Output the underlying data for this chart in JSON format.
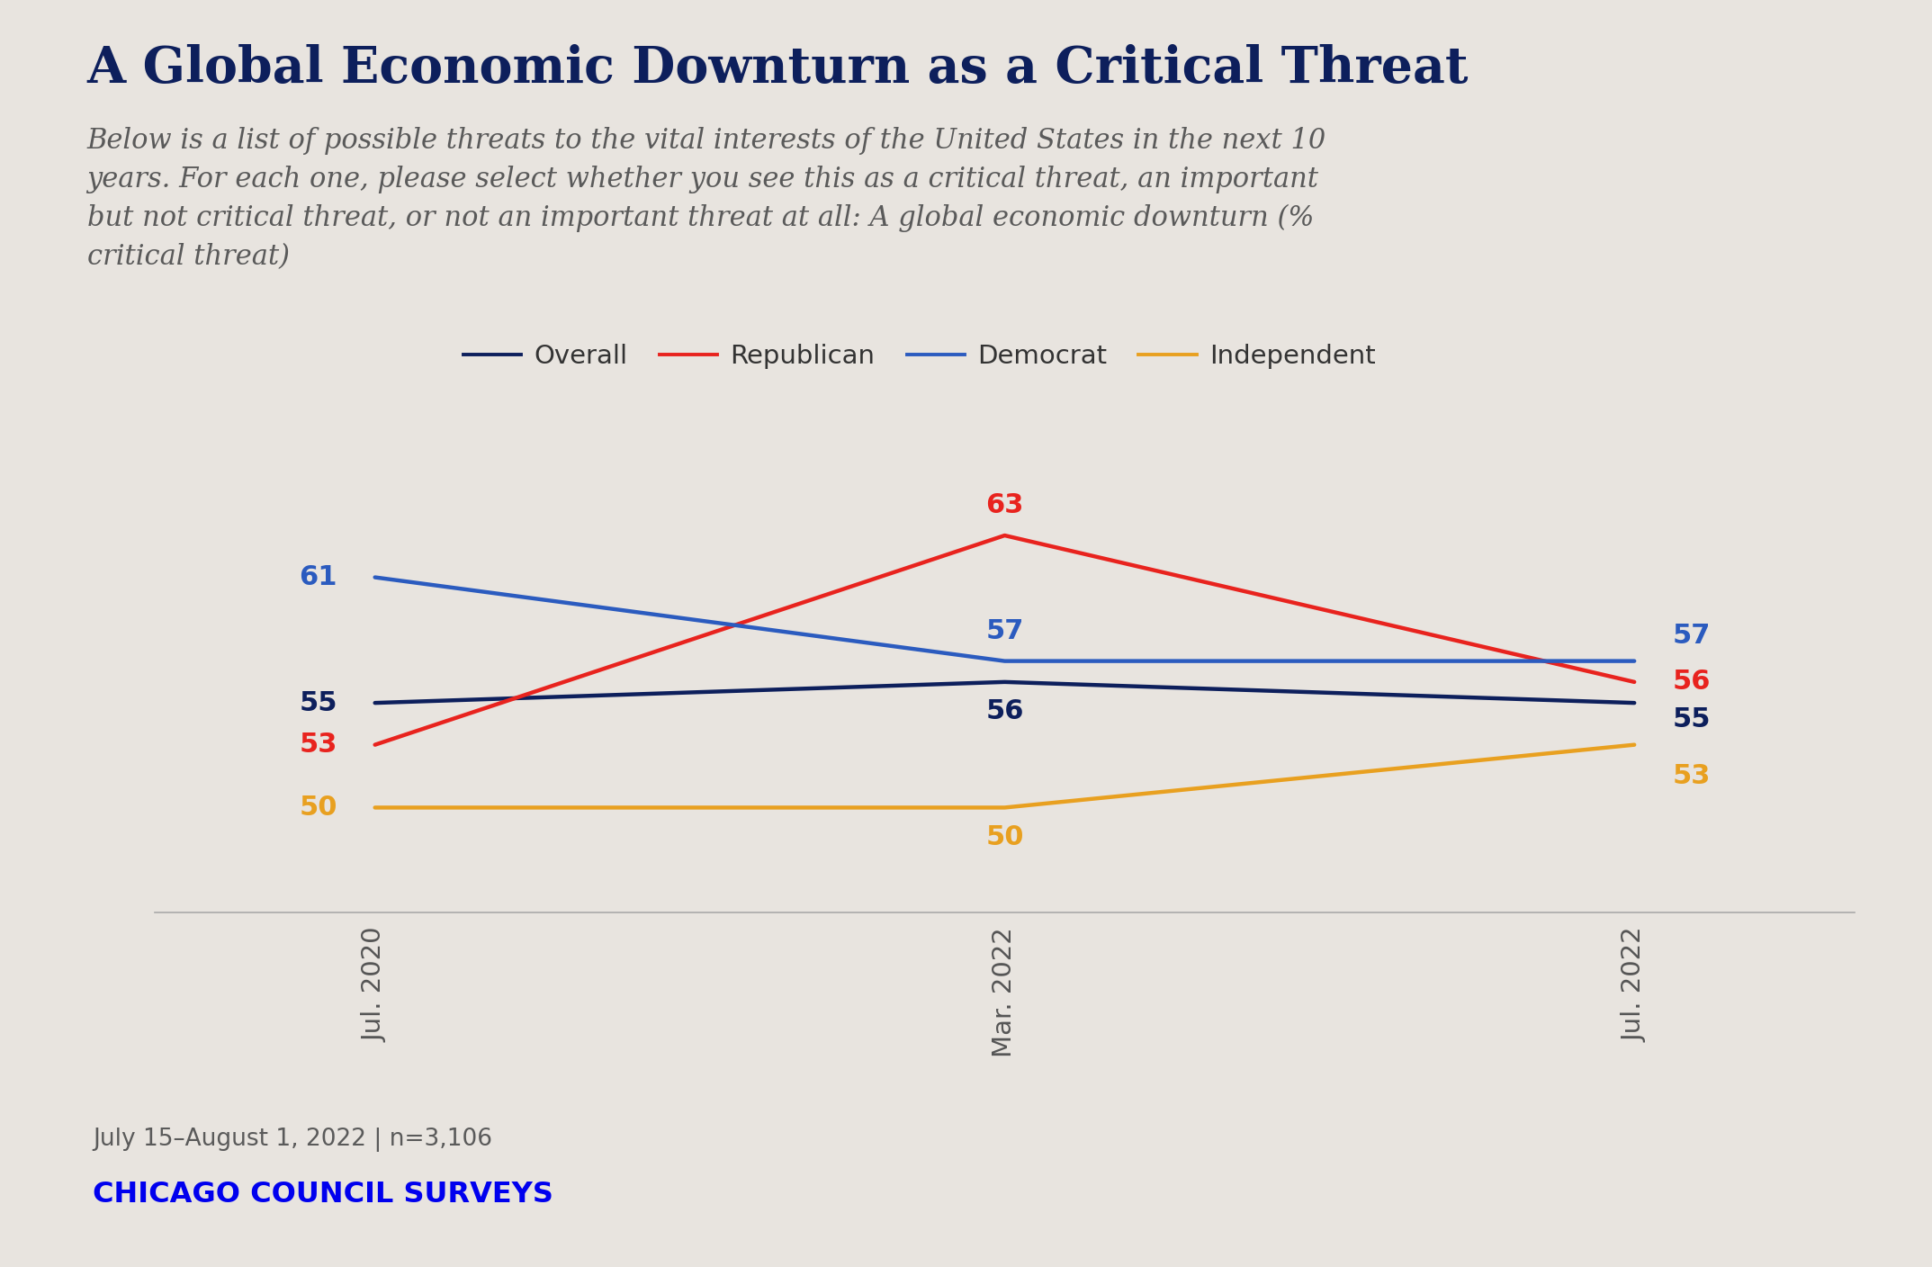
{
  "title": "A Global Economic Downturn as a Critical Threat",
  "subtitle": "Below is a list of possible threats to the vital interests of the United States in the next 10\nyears. For each one, please select whether you see this as a critical threat, an important\nbut not critical threat, or not an important threat at all: A global economic downturn (%\ncritical threat)",
  "x_labels": [
    "Jul. 2020",
    "Mar. 2022",
    "Jul. 2022"
  ],
  "x_positions": [
    0,
    1,
    2
  ],
  "series": [
    {
      "name": "Overall",
      "color": "#0d1f5c",
      "values": [
        55,
        56,
        55
      ]
    },
    {
      "name": "Republican",
      "color": "#e8231e",
      "values": [
        53,
        63,
        56
      ]
    },
    {
      "name": "Democrat",
      "color": "#2b5bbf",
      "values": [
        61,
        57,
        57
      ]
    },
    {
      "name": "Independent",
      "color": "#e8a020",
      "values": [
        50,
        50,
        53
      ]
    }
  ],
  "footnote": "July 15–August 1, 2022 | n=3,106",
  "source": "CHICAGO COUNCIL SURVEYS",
  "background_color": "#e8e4df",
  "title_color": "#0d1f5c",
  "subtitle_color": "#5a5a5a",
  "footnote_color": "#5a5a5a",
  "source_color": "#0000ee",
  "ylim": [
    45,
    68
  ],
  "line_width": 3.2
}
